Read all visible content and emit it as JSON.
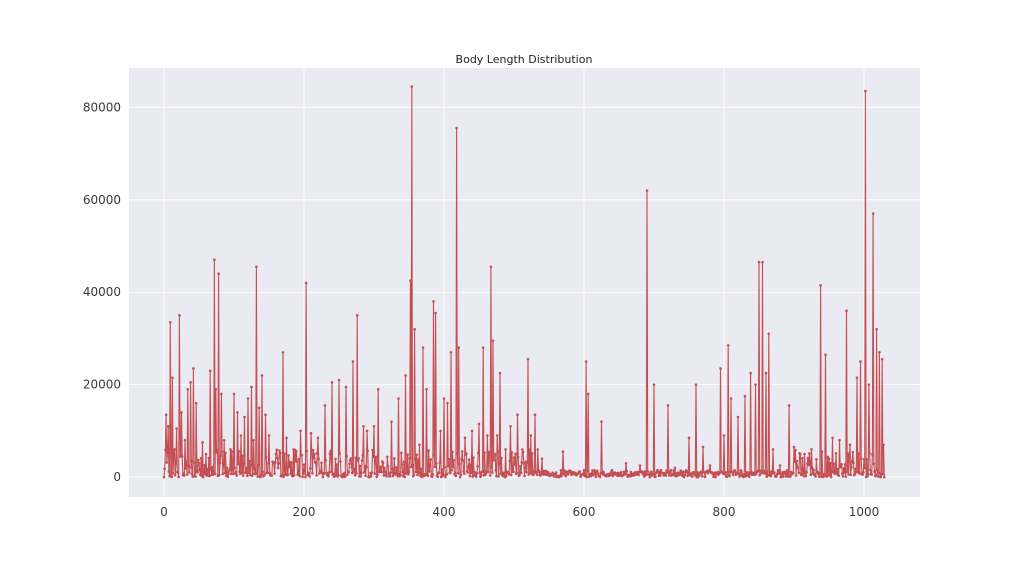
{
  "colors": {
    "plot_bg": "#eaeaf2",
    "grid": "#ffffff",
    "line": "#c44e52"
  },
  "chart_data": {
    "type": "line",
    "title": "Body Length Distribution",
    "xlabel": "",
    "ylabel": "",
    "xlim": [
      -50,
      1080
    ],
    "ylim": [
      -4300,
      88500
    ],
    "xticks": [
      0,
      200,
      400,
      600,
      800,
      1000
    ],
    "yticks": [
      0,
      20000,
      40000,
      60000,
      80000
    ],
    "xtick_labels": [
      "0",
      "200",
      "400",
      "600",
      "800",
      "1000"
    ],
    "ytick_labels": [
      "0",
      "20000",
      "40000",
      "60000",
      "80000"
    ],
    "grid": true,
    "marker": "dot",
    "peaks": [
      [
        0,
        0
      ],
      [
        3,
        13500
      ],
      [
        6,
        11000
      ],
      [
        9,
        33500
      ],
      [
        12,
        21500
      ],
      [
        15,
        6000
      ],
      [
        18,
        10500
      ],
      [
        22,
        35000
      ],
      [
        25,
        14000
      ],
      [
        30,
        8000
      ],
      [
        34,
        19000
      ],
      [
        38,
        20500
      ],
      [
        42,
        23500
      ],
      [
        46,
        16000
      ],
      [
        50,
        3000
      ],
      [
        55,
        7500
      ],
      [
        60,
        5000
      ],
      [
        66,
        23000
      ],
      [
        72,
        47000
      ],
      [
        74,
        19000
      ],
      [
        78,
        44000
      ],
      [
        82,
        18000
      ],
      [
        86,
        8000
      ],
      [
        90,
        2000
      ],
      [
        95,
        6000
      ],
      [
        100,
        18000
      ],
      [
        105,
        14000
      ],
      [
        110,
        9000
      ],
      [
        115,
        13000
      ],
      [
        120,
        17000
      ],
      [
        125,
        19500
      ],
      [
        128,
        8000
      ],
      [
        132,
        45500
      ],
      [
        136,
        15000
      ],
      [
        140,
        22000
      ],
      [
        145,
        13500
      ],
      [
        150,
        9000
      ],
      [
        160,
        5000
      ],
      [
        170,
        27000
      ],
      [
        175,
        8500
      ],
      [
        185,
        6000
      ],
      [
        195,
        10000
      ],
      [
        203,
        42000
      ],
      [
        210,
        9500
      ],
      [
        220,
        8500
      ],
      [
        230,
        15500
      ],
      [
        240,
        20500
      ],
      [
        250,
        21000
      ],
      [
        260,
        19500
      ],
      [
        270,
        25000
      ],
      [
        276,
        35000
      ],
      [
        285,
        11000
      ],
      [
        290,
        10000
      ],
      [
        300,
        11000
      ],
      [
        306,
        19000
      ],
      [
        315,
        2000
      ],
      [
        325,
        12000
      ],
      [
        335,
        17000
      ],
      [
        345,
        22000
      ],
      [
        352,
        42500
      ],
      [
        354,
        84500
      ],
      [
        358,
        32000
      ],
      [
        365,
        7000
      ],
      [
        370,
        28000
      ],
      [
        375,
        19000
      ],
      [
        385,
        38000
      ],
      [
        388,
        35500
      ],
      [
        395,
        10000
      ],
      [
        400,
        17000
      ],
      [
        405,
        16000
      ],
      [
        410,
        27000
      ],
      [
        418,
        75500
      ],
      [
        421,
        28000
      ],
      [
        430,
        8500
      ],
      [
        440,
        10000
      ],
      [
        450,
        11500
      ],
      [
        456,
        28000
      ],
      [
        462,
        9000
      ],
      [
        467,
        45500
      ],
      [
        470,
        29500
      ],
      [
        476,
        9000
      ],
      [
        480,
        22500
      ],
      [
        488,
        6000
      ],
      [
        495,
        11000
      ],
      [
        505,
        13500
      ],
      [
        512,
        6000
      ],
      [
        520,
        25500
      ],
      [
        524,
        9000
      ],
      [
        530,
        13500
      ],
      [
        535,
        1500
      ],
      [
        540,
        4000
      ],
      [
        560,
        1000
      ],
      [
        570,
        5500
      ],
      [
        580,
        1000
      ],
      [
        600,
        1500
      ],
      [
        603,
        25000
      ],
      [
        606,
        18000
      ],
      [
        615,
        1500
      ],
      [
        625,
        12000
      ],
      [
        640,
        1500
      ],
      [
        660,
        3000
      ],
      [
        680,
        2500
      ],
      [
        690,
        62000
      ],
      [
        695,
        1000
      ],
      [
        700,
        20000
      ],
      [
        710,
        1500
      ],
      [
        720,
        15500
      ],
      [
        730,
        2000
      ],
      [
        740,
        1000
      ],
      [
        750,
        8500
      ],
      [
        760,
        20000
      ],
      [
        770,
        6500
      ],
      [
        780,
        2500
      ],
      [
        795,
        23500
      ],
      [
        800,
        9000
      ],
      [
        806,
        28500
      ],
      [
        810,
        17000
      ],
      [
        815,
        1500
      ],
      [
        820,
        13000
      ],
      [
        830,
        17500
      ],
      [
        838,
        22500
      ],
      [
        845,
        20000
      ],
      [
        850,
        46500
      ],
      [
        855,
        46500
      ],
      [
        860,
        22500
      ],
      [
        864,
        31000
      ],
      [
        870,
        6000
      ],
      [
        880,
        2500
      ],
      [
        893,
        15500
      ],
      [
        900,
        6500
      ],
      [
        915,
        5000
      ],
      [
        925,
        6000
      ],
      [
        938,
        41500
      ],
      [
        945,
        26500
      ],
      [
        955,
        8500
      ],
      [
        965,
        8000
      ],
      [
        975,
        36000
      ],
      [
        980,
        7000
      ],
      [
        990,
        21500
      ],
      [
        995,
        25000
      ],
      [
        1002,
        83500
      ],
      [
        1007,
        20000
      ],
      [
        1013,
        57000
      ],
      [
        1018,
        32000
      ],
      [
        1022,
        27000
      ],
      [
        1026,
        25500
      ],
      [
        1028,
        7000
      ],
      [
        1029,
        0
      ]
    ]
  }
}
